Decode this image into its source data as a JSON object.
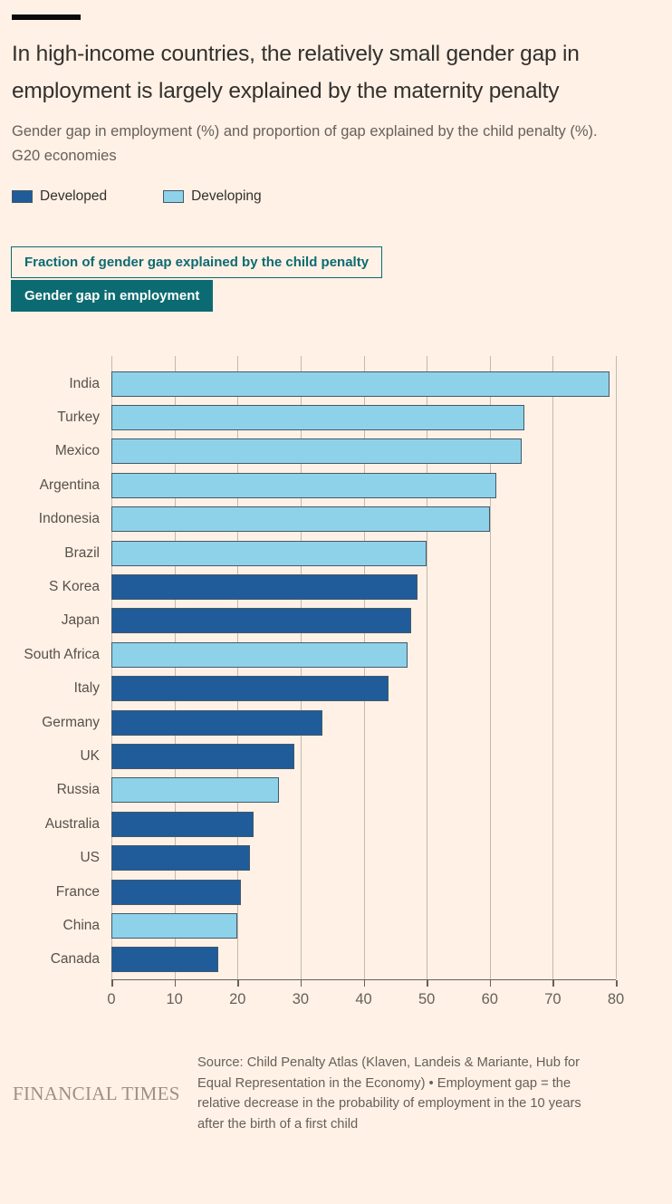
{
  "page": {
    "background_color": "#fff1e5",
    "accent_color": "#0c6b72"
  },
  "header": {
    "title": "In high-income countries, the relatively small gender gap in employment is largely explained by the maternity penalty",
    "subtitle": "Gender gap in employment (%) and proportion of gap explained by the child penalty (%). G20 economies"
  },
  "legend": {
    "items": [
      {
        "label": "Developed",
        "group": "Developed"
      },
      {
        "label": "Developing",
        "group": "Developing"
      }
    ]
  },
  "toggles": [
    {
      "label": "Fraction of gender gap explained by the child penalty",
      "active": false
    },
    {
      "label": "Gender gap in employment",
      "active": true
    }
  ],
  "chart_data": {
    "type": "bar",
    "orientation": "horizontal",
    "title": "Gender gap in employment",
    "categories": [
      "India",
      "Turkey",
      "Mexico",
      "Argentina",
      "Indonesia",
      "Brazil",
      "S Korea",
      "Japan",
      "South Africa",
      "Italy",
      "Germany",
      "UK",
      "Russia",
      "Australia",
      "US",
      "France",
      "China",
      "Canada"
    ],
    "values": [
      79,
      65.5,
      65,
      61,
      60,
      50,
      48.5,
      47.5,
      47,
      44,
      33.5,
      29,
      26.5,
      22.5,
      22,
      20.5,
      20,
      17
    ],
    "groups": [
      "Developing",
      "Developing",
      "Developing",
      "Developing",
      "Developing",
      "Developing",
      "Developed",
      "Developed",
      "Developing",
      "Developed",
      "Developed",
      "Developed",
      "Developing",
      "Developed",
      "Developed",
      "Developed",
      "Developing",
      "Developed"
    ],
    "colors": {
      "Developed": "#1f5c99",
      "Developing": "#8ed2ea"
    },
    "bar_border_color": "#46586a",
    "xlabel": "",
    "ylabel": "",
    "xlim": [
      0,
      80
    ],
    "xticks": [
      0,
      10,
      20,
      30,
      40,
      50,
      60,
      70,
      80
    ],
    "grid": true,
    "legend_position": "top"
  },
  "footer": {
    "brand": "FINANCIAL TIMES",
    "source": "Source: Child Penalty Atlas (Klaven, Landeis & Mariante, Hub for Equal Representation in the Economy) • Employment gap = the relative decrease in the probability of employment in the 10 years after the birth of a first child"
  }
}
